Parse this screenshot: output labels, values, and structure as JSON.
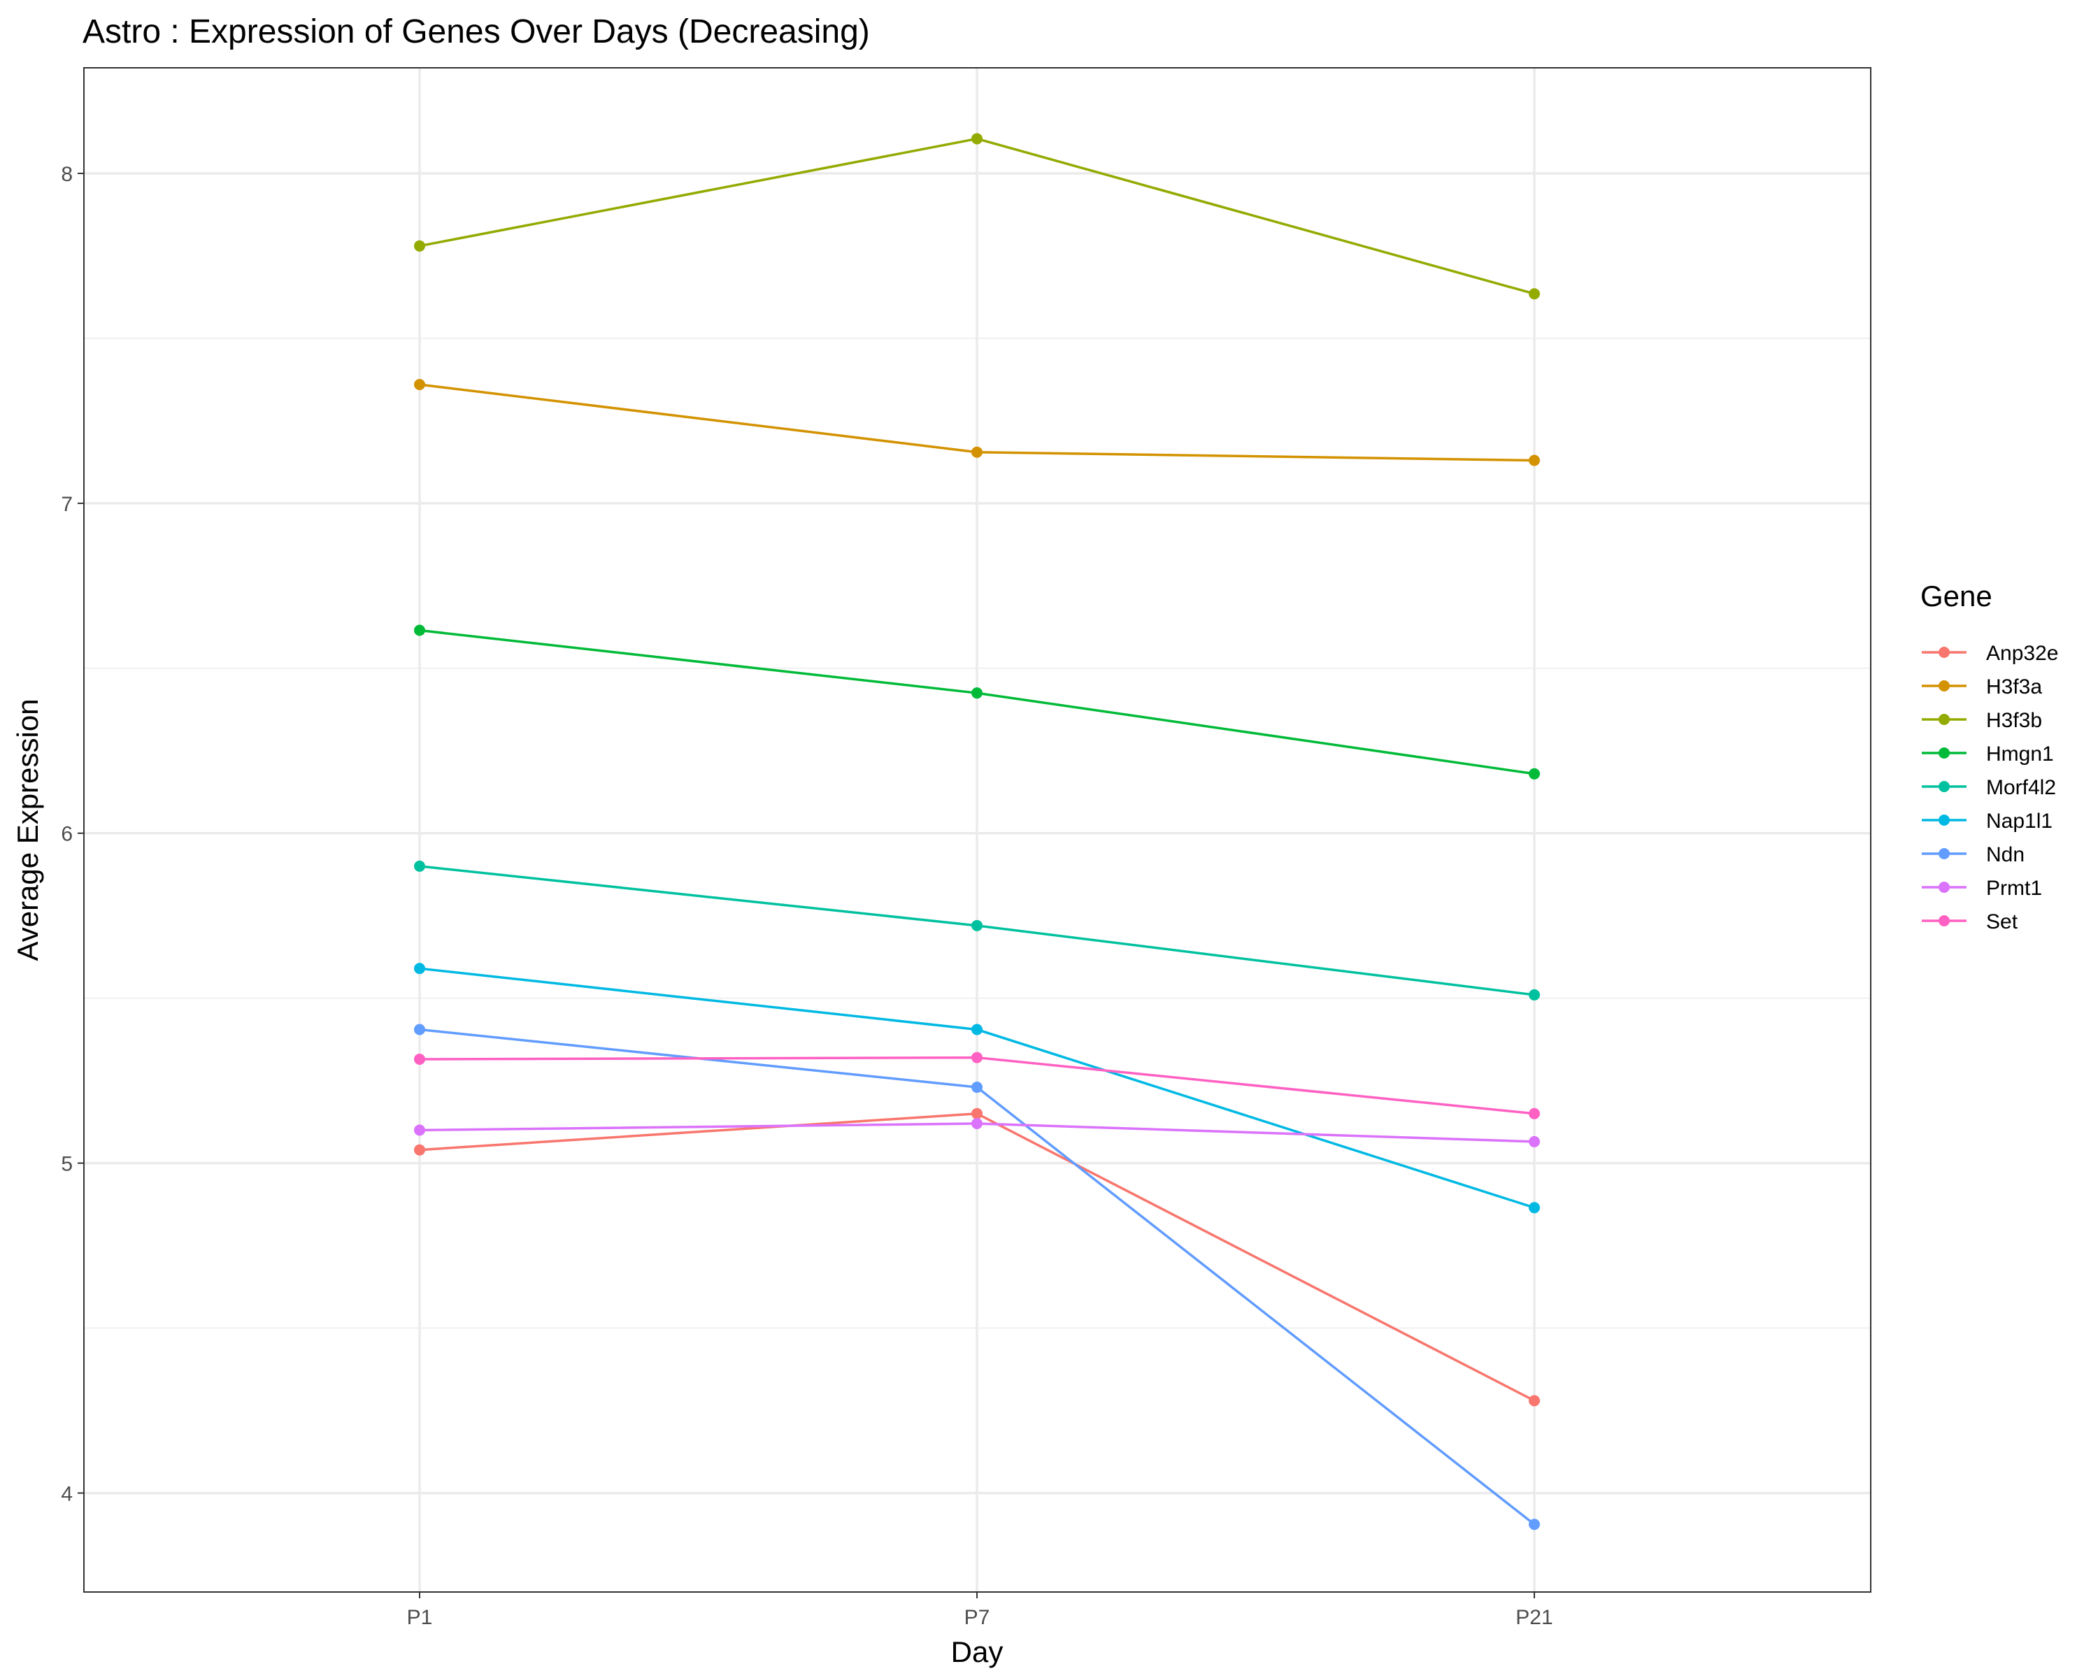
{
  "chart_data": {
    "type": "line",
    "title": "Astro : Expression of Genes Over Days (Decreasing)",
    "xlabel": "Day",
    "ylabel": "Average Expression",
    "categories": [
      "P1",
      "P7",
      "P21"
    ],
    "ylim": [
      3.7,
      8.32
    ],
    "yticks": [
      4,
      5,
      6,
      7,
      8
    ],
    "y_minor_ticks": [
      4.5,
      5.5,
      6.5,
      7.5
    ],
    "grid": true,
    "legend": {
      "title": "Gene",
      "position": "right"
    },
    "series": [
      {
        "name": "Anp32e",
        "color": "#F8766D",
        "values": [
          5.04,
          5.15,
          4.28
        ]
      },
      {
        "name": "H3f3a",
        "color": "#D39200",
        "values": [
          7.36,
          7.155,
          7.13
        ]
      },
      {
        "name": "H3f3b",
        "color": "#93AA00",
        "values": [
          7.78,
          8.105,
          7.635
        ]
      },
      {
        "name": "Hmgn1",
        "color": "#00BA38",
        "values": [
          6.615,
          6.425,
          6.18
        ]
      },
      {
        "name": "Morf4l2",
        "color": "#00C19F",
        "values": [
          5.9,
          5.72,
          5.51
        ]
      },
      {
        "name": "Nap1l1",
        "color": "#00B9E3",
        "values": [
          5.59,
          5.405,
          4.865
        ]
      },
      {
        "name": "Ndn",
        "color": "#619CFF",
        "values": [
          5.405,
          5.23,
          3.905
        ]
      },
      {
        "name": "Prmt1",
        "color": "#DB72FB",
        "values": [
          5.1,
          5.12,
          5.065
        ]
      },
      {
        "name": "Set",
        "color": "#FF61C3",
        "values": [
          5.315,
          5.32,
          5.15
        ]
      }
    ]
  }
}
